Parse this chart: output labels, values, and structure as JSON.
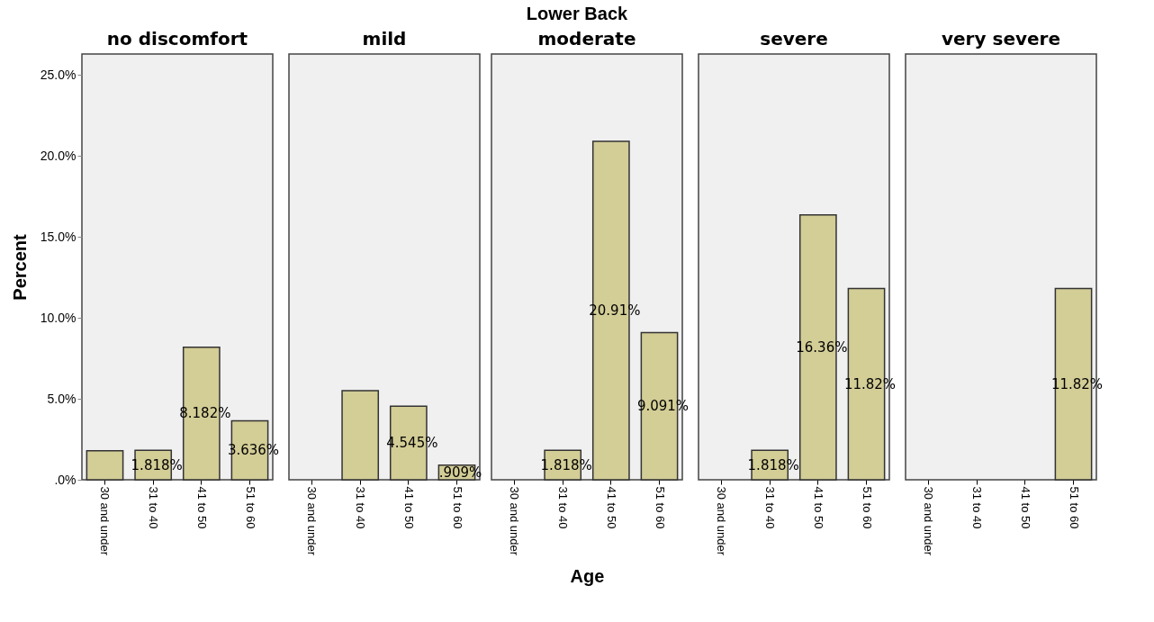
{
  "chart_data": [
    {
      "type": "bar",
      "title": "no discomfort",
      "ylabel": "Percent",
      "categories": [
        "30 and under",
        "31 to 40",
        "41 to 50",
        "51 to 60"
      ],
      "values": [
        1.8,
        1.818,
        8.182,
        3.636
      ],
      "value_labels": [
        null,
        "1.818%",
        "8.182%",
        "3.636%"
      ],
      "color": "#d3cd96",
      "ylim": [
        0,
        26.3
      ],
      "yticks": [
        {
          "value": 0,
          "label": ".0%"
        },
        {
          "value": 5,
          "label": "5.0%"
        },
        {
          "value": 10,
          "label": "10.0%"
        },
        {
          "value": 15,
          "label": "15.0%"
        },
        {
          "value": 20,
          "label": "20.0%"
        },
        {
          "value": 25,
          "label": "25.0%"
        }
      ],
      "grid": false
    },
    {
      "type": "bar",
      "title": "mild",
      "categories": [
        "30 and under",
        "31 to 40",
        "41 to 50",
        "51 to 60"
      ],
      "values": [
        0,
        5.5,
        4.545,
        0.909
      ],
      "value_labels": [
        null,
        null,
        "4.545%",
        ".909%"
      ],
      "color": "#d3cd96",
      "ylim": [
        0,
        26.3
      ],
      "tick_labels": "x"
    },
    {
      "type": "bar",
      "title": "moderate",
      "xlabel": "Age",
      "annotations": [
        "Lower Back"
      ],
      "categories": [
        "30 and under",
        "31 to 40",
        "41 to 50",
        "51 to 60"
      ],
      "values": [
        0,
        1.818,
        20.91,
        9.091
      ],
      "value_labels": [
        null,
        "1.818%",
        "20.91%",
        "9.091%"
      ],
      "color": "#d3cd96",
      "ylim": [
        0,
        26.3
      ],
      "tick_labels": "x"
    },
    {
      "type": "bar",
      "title": "severe",
      "categories": [
        "30 and under",
        "31 to 40",
        "41 to 50",
        "51 to 60"
      ],
      "values": [
        0,
        1.818,
        16.36,
        11.82
      ],
      "value_labels": [
        null,
        "1.818%",
        "16.36%",
        "11.82%"
      ],
      "color": "#d3cd96",
      "ylim": [
        0,
        26.3
      ],
      "tick_labels": "x"
    },
    {
      "type": "bar",
      "title": "very severe",
      "categories": [
        "30 and under",
        "31 to 40",
        "41 to 50",
        "51 to 60"
      ],
      "values": [
        0,
        0,
        0,
        11.82
      ],
      "value_labels": [
        null,
        null,
        null,
        "11.82%"
      ],
      "color": "#d3cd96",
      "ylim": [
        0,
        26.3
      ],
      "tick_labels": "x"
    }
  ]
}
